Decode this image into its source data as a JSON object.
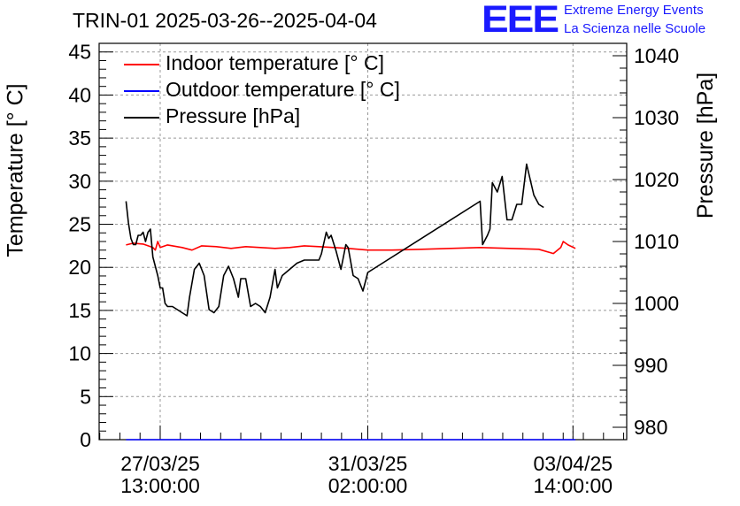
{
  "chart_data": {
    "type": "line",
    "title": "TRIN-01 2025-03-26--2025-04-04",
    "ylabel": "Temperature [° C]",
    "y2label": "Pressure [hPa]",
    "ylim": [
      0,
      46
    ],
    "y2lim": [
      978,
      1042
    ],
    "yticks": [
      0,
      5,
      10,
      15,
      20,
      25,
      30,
      35,
      40,
      45
    ],
    "y2ticks": [
      980,
      990,
      1000,
      1010,
      1020,
      1030,
      1040
    ],
    "xlim": [
      "2025-03-26 12:00",
      "2025-04-04 12:00"
    ],
    "xticks": [
      {
        "x": "2025-03-27 13:00",
        "label1": "27/03/25",
        "label2": "13:00:00"
      },
      {
        "x": "2025-03-31 02:00",
        "label1": "31/03/25",
        "label2": "02:00:00"
      },
      {
        "x": "2025-04-03 14:00",
        "label1": "03/04/25",
        "label2": "14:00:00"
      }
    ],
    "grid": true,
    "legend_position": "top-left",
    "series": [
      {
        "name": "Indoor temperature [° C]",
        "axis": "left",
        "color": "#ff0000",
        "points": [
          [
            "2025-03-26 23:00",
            22.6
          ],
          [
            "2025-03-27 02:00",
            22.8
          ],
          [
            "2025-03-27 06:00",
            22.7
          ],
          [
            "2025-03-27 10:00",
            22.3
          ],
          [
            "2025-03-27 11:00",
            22.0
          ],
          [
            "2025-03-27 12:00",
            23.0
          ],
          [
            "2025-03-27 13:00",
            22.3
          ],
          [
            "2025-03-27 16:00",
            22.6
          ],
          [
            "2025-03-27 22:00",
            22.3
          ],
          [
            "2025-03-28 02:00",
            22.0
          ],
          [
            "2025-03-28 06:00",
            22.5
          ],
          [
            "2025-03-28 12:00",
            22.4
          ],
          [
            "2025-03-28 18:00",
            22.2
          ],
          [
            "2025-03-29 00:00",
            22.4
          ],
          [
            "2025-03-29 06:00",
            22.3
          ],
          [
            "2025-03-29 12:00",
            22.2
          ],
          [
            "2025-03-29 18:00",
            22.3
          ],
          [
            "2025-03-30 00:00",
            22.5
          ],
          [
            "2025-03-30 06:00",
            22.4
          ],
          [
            "2025-03-30 12:00",
            22.3
          ],
          [
            "2025-03-30 18:00",
            22.2
          ],
          [
            "2025-03-31 02:00",
            22.0
          ],
          [
            "2025-03-31 12:00",
            22.0
          ],
          [
            "2025-04-01 00:00",
            22.1
          ],
          [
            "2025-04-01 12:00",
            22.2
          ],
          [
            "2025-04-02 00:00",
            22.3
          ],
          [
            "2025-04-02 12:00",
            22.2
          ],
          [
            "2025-04-03 00:00",
            22.1
          ],
          [
            "2025-04-03 06:00",
            21.6
          ],
          [
            "2025-04-03 09:00",
            22.3
          ],
          [
            "2025-04-03 10:00",
            23.0
          ],
          [
            "2025-04-03 12:00",
            22.6
          ],
          [
            "2025-04-03 15:00",
            22.2
          ]
        ]
      },
      {
        "name": "Outdoor temperature [° C]",
        "axis": "left",
        "color": "#0000ff",
        "points": [
          [
            "2025-03-26 23:00",
            0.0
          ],
          [
            "2025-04-03 15:00",
            0.0
          ]
        ]
      },
      {
        "name": "Pressure [hPa]",
        "axis": "right",
        "color": "#000000",
        "points": [
          [
            "2025-03-26 23:00",
            1016.5
          ],
          [
            "2025-03-27 00:00",
            1013
          ],
          [
            "2025-03-27 01:00",
            1010.5
          ],
          [
            "2025-03-27 02:00",
            1009.5
          ],
          [
            "2025-03-27 03:00",
            1009.5
          ],
          [
            "2025-03-27 04:00",
            1011
          ],
          [
            "2025-03-27 05:00",
            1011
          ],
          [
            "2025-03-27 06:00",
            1011.5
          ],
          [
            "2025-03-27 07:00",
            1010
          ],
          [
            "2025-03-27 08:00",
            1011.5
          ],
          [
            "2025-03-27 09:00",
            1012
          ],
          [
            "2025-03-27 10:00",
            1007.5
          ],
          [
            "2025-03-27 12:00",
            1004.5
          ],
          [
            "2025-03-27 13:00",
            1002.5
          ],
          [
            "2025-03-27 14:00",
            1002.5
          ],
          [
            "2025-03-27 15:00",
            1000
          ],
          [
            "2025-03-27 16:00",
            999.5
          ],
          [
            "2025-03-27 18:00",
            999.5
          ],
          [
            "2025-03-27 20:00",
            999
          ],
          [
            "2025-03-27 22:00",
            998.5
          ],
          [
            "2025-03-28 00:00",
            998
          ],
          [
            "2025-03-28 01:00",
            1001
          ],
          [
            "2025-03-28 03:00",
            1005.5
          ],
          [
            "2025-03-28 05:00",
            1006.5
          ],
          [
            "2025-03-28 07:00",
            1004.5
          ],
          [
            "2025-03-28 09:00",
            999
          ],
          [
            "2025-03-28 11:00",
            998.5
          ],
          [
            "2025-03-28 13:00",
            999.5
          ],
          [
            "2025-03-28 15:00",
            1004.5
          ],
          [
            "2025-03-28 17:00",
            1006
          ],
          [
            "2025-03-28 19:00",
            1004
          ],
          [
            "2025-03-28 21:00",
            1001
          ],
          [
            "2025-03-28 22:00",
            1004
          ],
          [
            "2025-03-29 00:00",
            1004
          ],
          [
            "2025-03-29 02:00",
            999.5
          ],
          [
            "2025-03-29 04:00",
            1000
          ],
          [
            "2025-03-29 06:00",
            999.5
          ],
          [
            "2025-03-29 08:00",
            998.5
          ],
          [
            "2025-03-29 10:00",
            1001
          ],
          [
            "2025-03-29 12:00",
            1005.5
          ],
          [
            "2025-03-29 13:00",
            1002.5
          ],
          [
            "2025-03-29 15:00",
            1004.5
          ],
          [
            "2025-03-29 18:00",
            1005.5
          ],
          [
            "2025-03-29 21:00",
            1006.5
          ],
          [
            "2025-03-30 00:00",
            1007
          ],
          [
            "2025-03-30 03:00",
            1007
          ],
          [
            "2025-03-30 06:00",
            1007
          ],
          [
            "2025-03-30 07:00",
            1008
          ],
          [
            "2025-03-30 09:00",
            1011.5
          ],
          [
            "2025-03-30 10:00",
            1010.5
          ],
          [
            "2025-03-30 11:00",
            1011
          ],
          [
            "2025-03-30 13:00",
            1008.5
          ],
          [
            "2025-03-30 15:00",
            1005.5
          ],
          [
            "2025-03-30 17:00",
            1009.5
          ],
          [
            "2025-03-30 18:00",
            1009
          ],
          [
            "2025-03-30 20:00",
            1004.5
          ],
          [
            "2025-03-30 22:00",
            1004
          ],
          [
            "2025-03-31 00:00",
            1002
          ],
          [
            "2025-03-31 01:00",
            1003.5
          ],
          [
            "2025-03-31 02:00",
            1005
          ],
          [
            "2025-04-02 00:00",
            1016.5
          ],
          [
            "2025-04-02 01:00",
            1009.5
          ],
          [
            "2025-04-02 03:00",
            1011
          ],
          [
            "2025-04-02 04:00",
            1012
          ],
          [
            "2025-04-02 05:00",
            1019.5
          ],
          [
            "2025-04-02 07:00",
            1018
          ],
          [
            "2025-04-02 09:00",
            1020.5
          ],
          [
            "2025-04-02 11:00",
            1013.5
          ],
          [
            "2025-04-02 13:00",
            1013.5
          ],
          [
            "2025-04-02 15:00",
            1016
          ],
          [
            "2025-04-02 17:00",
            1016
          ],
          [
            "2025-04-02 19:00",
            1022.5
          ],
          [
            "2025-04-02 22:00",
            1017.5
          ],
          [
            "2025-04-03 00:00",
            1016
          ],
          [
            "2025-04-03 02:00",
            1015.5
          ]
        ]
      }
    ]
  },
  "logo": {
    "text": "EEE",
    "line1": "Extreme Energy Events",
    "line2": "La Scienza nelle Scuole"
  }
}
